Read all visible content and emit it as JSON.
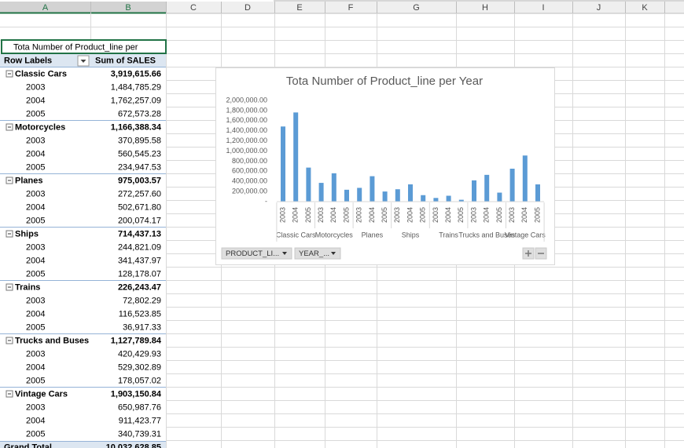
{
  "columns": [
    "A",
    "B",
    "C",
    "D",
    "E",
    "F",
    "G",
    "H",
    "I",
    "J",
    "K"
  ],
  "pivot": {
    "title": "Tota Number of Product_line per",
    "header": [
      "Row Labels",
      "Sum of SALES"
    ],
    "groups": [
      {
        "label": "Classic Cars",
        "value": "3,919,615.66",
        "rows": [
          {
            "label": "2003",
            "value": "1,484,785.29"
          },
          {
            "label": "2004",
            "value": "1,762,257.09"
          },
          {
            "label": "2005",
            "value": "672,573.28"
          }
        ]
      },
      {
        "label": "Motorcycles",
        "value": "1,166,388.34",
        "rows": [
          {
            "label": "2003",
            "value": "370,895.58"
          },
          {
            "label": "2004",
            "value": "560,545.23"
          },
          {
            "label": "2005",
            "value": "234,947.53"
          }
        ]
      },
      {
        "label": "Planes",
        "value": "975,003.57",
        "rows": [
          {
            "label": "2003",
            "value": "272,257.60"
          },
          {
            "label": "2004",
            "value": "502,671.80"
          },
          {
            "label": "2005",
            "value": "200,074.17"
          }
        ]
      },
      {
        "label": "Ships",
        "value": "714,437.13",
        "rows": [
          {
            "label": "2003",
            "value": "244,821.09"
          },
          {
            "label": "2004",
            "value": "341,437.97"
          },
          {
            "label": "2005",
            "value": "128,178.07"
          }
        ]
      },
      {
        "label": "Trains",
        "value": "226,243.47",
        "rows": [
          {
            "label": "2003",
            "value": "72,802.29"
          },
          {
            "label": "2004",
            "value": "116,523.85"
          },
          {
            "label": "2005",
            "value": "36,917.33"
          }
        ]
      },
      {
        "label": "Trucks and Buses",
        "value": "1,127,789.84",
        "rows": [
          {
            "label": "2003",
            "value": "420,429.93"
          },
          {
            "label": "2004",
            "value": "529,302.89"
          },
          {
            "label": "2005",
            "value": "178,057.02"
          }
        ]
      },
      {
        "label": "Vintage Cars",
        "value": "1,903,150.84",
        "rows": [
          {
            "label": "2003",
            "value": "650,987.76"
          },
          {
            "label": "2004",
            "value": "911,423.77"
          },
          {
            "label": "2005",
            "value": "340,739.31"
          }
        ]
      }
    ],
    "grand_total": {
      "label": "Grand Total",
      "value": "10,032,628.85"
    }
  },
  "chart_data": {
    "type": "bar",
    "title": "Tota Number of Product_line per Year",
    "color": "#5b9bd5",
    "groups": [
      {
        "label": "Classic Cars",
        "categories": [
          "2003",
          "2004",
          "2005"
        ],
        "values": [
          1484785.29,
          1762257.09,
          672573.28
        ]
      },
      {
        "label": "Motorcycles",
        "categories": [
          "2003",
          "2004",
          "2005"
        ],
        "values": [
          370895.58,
          560545.23,
          234947.53
        ]
      },
      {
        "label": "Planes",
        "categories": [
          "2003",
          "2004",
          "2005"
        ],
        "values": [
          272257.6,
          502671.8,
          200074.17
        ]
      },
      {
        "label": "Ships",
        "categories": [
          "2003",
          "2004",
          "2005"
        ],
        "values": [
          244821.09,
          341437.97,
          128178.07
        ]
      },
      {
        "label": "Trains",
        "categories": [
          "2003",
          "2004",
          "2005"
        ],
        "values": [
          72802.29,
          116523.85,
          36917.33
        ]
      },
      {
        "label": "Trucks and Buses",
        "categories": [
          "2003",
          "2004",
          "2005"
        ],
        "values": [
          420429.93,
          529302.89,
          178057.02
        ]
      },
      {
        "label": "Vintage Cars",
        "categories": [
          "2003",
          "2004",
          "2005"
        ],
        "values": [
          650987.76,
          911423.77,
          340739.31
        ]
      }
    ],
    "ylim": [
      0,
      2000000
    ],
    "yticks": [
      {
        "value": 0,
        "label": "-"
      },
      {
        "value": 200000,
        "label": "200,000.00"
      },
      {
        "value": 400000,
        "label": "400,000.00"
      },
      {
        "value": 600000,
        "label": "600,000.00"
      },
      {
        "value": 800000,
        "label": "800,000.00"
      },
      {
        "value": 1000000,
        "label": "1,000,000.00"
      },
      {
        "value": 1200000,
        "label": "1,200,000.00"
      },
      {
        "value": 1400000,
        "label": "1,400,000.00"
      },
      {
        "value": 1600000,
        "label": "1,600,000.00"
      },
      {
        "value": 1800000,
        "label": "1,800,000.00"
      },
      {
        "value": 2000000,
        "label": "2,000,000.00"
      }
    ],
    "grid": false,
    "field_buttons": [
      "PRODUCT_LI...",
      "YEAR_..."
    ]
  }
}
